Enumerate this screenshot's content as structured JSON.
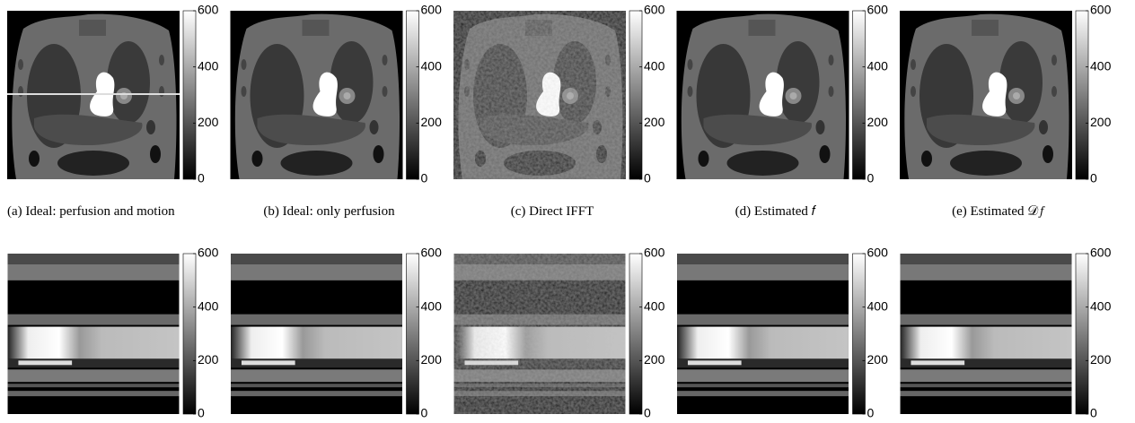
{
  "panels": [
    {
      "caption": "(a) Ideal: perfusion and motion"
    },
    {
      "caption": "(b) Ideal: only perfusion"
    },
    {
      "caption": "(c) Direct IFFT"
    },
    {
      "caption": "(d) Estimated 𝑓"
    },
    {
      "caption": "(e) Estimated 𝒟𝑓"
    }
  ],
  "colorbar": {
    "ylim": [
      0,
      600
    ],
    "yticks": [
      0,
      200,
      400,
      600
    ]
  }
}
